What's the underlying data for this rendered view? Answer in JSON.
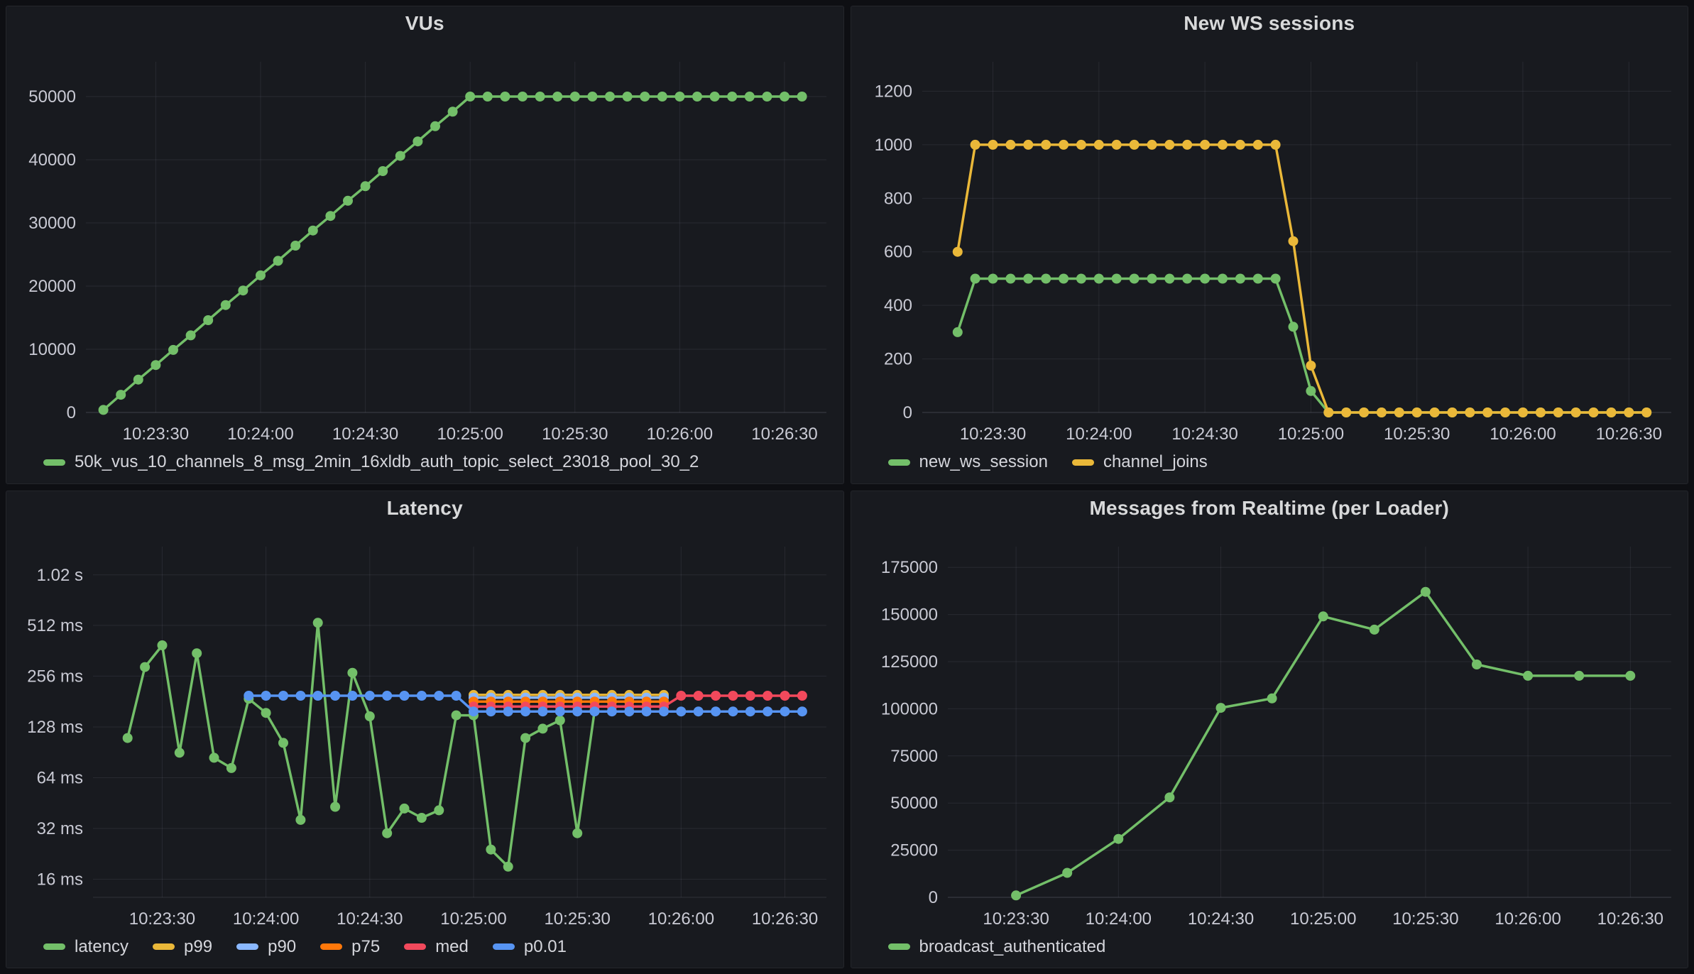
{
  "app": "grafana-dashboard",
  "colors": {
    "page_bg": "#0e0f13",
    "panel_bg": "#181a1f",
    "panel_border": "#24262b",
    "grid": "rgba(204,204,220,0.09)",
    "axis_text": "#c9cad4",
    "title_text": "#d8d9da",
    "legend_text": "#d5d6dc",
    "green": "#73BF69",
    "yellow": "#EAB839",
    "light_blue": "#8AB8FF",
    "orange": "#FF780A",
    "red": "#F2495C",
    "blue": "#5794F2"
  },
  "time_axis_labels": [
    "10:23:30",
    "10:24:00",
    "10:24:30",
    "10:25:00",
    "10:25:30",
    "10:26:00",
    "10:26:30"
  ],
  "panels": [
    {
      "key": "vus",
      "title": "VUs",
      "chart_data": {
        "type": "line",
        "title": "VUs",
        "y_scale": "linear",
        "x_unit": "seconds after 10:23:00",
        "xlim": [
          10,
          222
        ],
        "ylim": [
          0,
          55500
        ],
        "x_ticks": [
          {
            "t": 30,
            "label": "10:23:30"
          },
          {
            "t": 60,
            "label": "10:24:00"
          },
          {
            "t": 90,
            "label": "10:24:30"
          },
          {
            "t": 120,
            "label": "10:25:00"
          },
          {
            "t": 150,
            "label": "10:25:30"
          },
          {
            "t": 180,
            "label": "10:26:00"
          },
          {
            "t": 210,
            "label": "10:26:30"
          }
        ],
        "y_ticks": [
          {
            "v": 0,
            "label": "0"
          },
          {
            "v": 10000,
            "label": "10000"
          },
          {
            "v": 20000,
            "label": "20000"
          },
          {
            "v": 30000,
            "label": "30000"
          },
          {
            "v": 40000,
            "label": "40000"
          },
          {
            "v": 50000,
            "label": "50000"
          }
        ],
        "layout": {
          "ml": 112,
          "mr": 24,
          "mt": 30,
          "mb": 54
        },
        "series": [
          {
            "name": "50k_vus_10_channels_8_msg_2min_16xldb_auth_topic_select_23018_pool_30_2",
            "color": "#73BF69",
            "start": 15,
            "step": 5,
            "values": [
              400,
              2800,
              5200,
              7500,
              9900,
              12200,
              14600,
              17000,
              19300,
              21700,
              24000,
              26400,
              28800,
              31100,
              33500,
              35800,
              38200,
              40600,
              42900,
              45300,
              47600,
              50000,
              50000,
              50000,
              50000,
              50000,
              50000,
              50000,
              50000,
              50000,
              50000,
              50000,
              50000,
              50000,
              50000,
              50000,
              50000,
              50000,
              50000,
              50000,
              50000
            ]
          }
        ]
      }
    },
    {
      "key": "new-ws-sessions",
      "title": "New WS sessions",
      "chart_data": {
        "type": "line",
        "title": "New WS sessions",
        "y_scale": "linear",
        "x_unit": "seconds after 10:23:00",
        "xlim": [
          10,
          222
        ],
        "ylim": [
          0,
          1310
        ],
        "x_ticks": [
          {
            "t": 30,
            "label": "10:23:30"
          },
          {
            "t": 60,
            "label": "10:24:00"
          },
          {
            "t": 90,
            "label": "10:24:30"
          },
          {
            "t": 120,
            "label": "10:25:00"
          },
          {
            "t": 150,
            "label": "10:25:30"
          },
          {
            "t": 180,
            "label": "10:26:00"
          },
          {
            "t": 210,
            "label": "10:26:30"
          }
        ],
        "y_ticks": [
          {
            "v": 0,
            "label": "0"
          },
          {
            "v": 200,
            "label": "200"
          },
          {
            "v": 400,
            "label": "400"
          },
          {
            "v": 600,
            "label": "600"
          },
          {
            "v": 800,
            "label": "800"
          },
          {
            "v": 1000,
            "label": "1000"
          },
          {
            "v": 1200,
            "label": "1200"
          }
        ],
        "layout": {
          "ml": 100,
          "mr": 24,
          "mt": 30,
          "mb": 54
        },
        "series": [
          {
            "name": "new_ws_session",
            "color": "#73BF69",
            "start": 20,
            "step": 5,
            "values": [
              300,
              500,
              500,
              500,
              500,
              500,
              500,
              500,
              500,
              500,
              500,
              500,
              500,
              500,
              500,
              500,
              500,
              500,
              500,
              320,
              80,
              0,
              0,
              0,
              0,
              0,
              0,
              0,
              0,
              0,
              0,
              0,
              0,
              0,
              0,
              0,
              0,
              0,
              0,
              0
            ]
          },
          {
            "name": "channel_joins",
            "color": "#EAB839",
            "start": 20,
            "step": 5,
            "values": [
              600,
              1000,
              1000,
              1000,
              1000,
              1000,
              1000,
              1000,
              1000,
              1000,
              1000,
              1000,
              1000,
              1000,
              1000,
              1000,
              1000,
              1000,
              1000,
              640,
              175,
              0,
              0,
              0,
              0,
              0,
              0,
              0,
              0,
              0,
              0,
              0,
              0,
              0,
              0,
              0,
              0,
              0,
              0,
              0
            ]
          }
        ]
      }
    },
    {
      "key": "latency",
      "title": "Latency",
      "chart_data": {
        "type": "line",
        "title": "Latency",
        "y_scale": "log2",
        "y_unit": "ms",
        "x_unit": "seconds after 10:23:00",
        "xlim": [
          10,
          222
        ],
        "ylim": [
          12.5,
          1500
        ],
        "x_ticks": [
          {
            "t": 30,
            "label": "10:23:30"
          },
          {
            "t": 60,
            "label": "10:24:00"
          },
          {
            "t": 90,
            "label": "10:24:30"
          },
          {
            "t": 120,
            "label": "10:25:00"
          },
          {
            "t": 150,
            "label": "10:25:30"
          },
          {
            "t": 180,
            "label": "10:26:00"
          },
          {
            "t": 210,
            "label": "10:26:30"
          }
        ],
        "y_ticks": [
          {
            "v": 16,
            "label": "16 ms"
          },
          {
            "v": 32,
            "label": "32 ms"
          },
          {
            "v": 64,
            "label": "64 ms"
          },
          {
            "v": 128,
            "label": "128 ms"
          },
          {
            "v": 256,
            "label": "256 ms"
          },
          {
            "v": 512,
            "label": "512 ms"
          },
          {
            "v": 1020,
            "label": "1.02 s"
          }
        ],
        "layout": {
          "ml": 122,
          "mr": 24,
          "mt": 30,
          "mb": 54
        },
        "series": [
          {
            "name": "latency",
            "color": "#73BF69",
            "start": 20,
            "step": 5,
            "values": [
              110,
              290,
              390,
              90,
              350,
              84,
              73,
              188,
              155,
              103,
              36,
              530,
              43,
              268,
              148,
              30,
              42,
              37,
              41,
              150,
              150,
              24,
              19,
              110,
              125,
              140,
              30,
              160
            ]
          },
          {
            "name": "p99",
            "color": "#EAB839",
            "start": 120,
            "step": 5,
            "values": [
              198,
              198,
              198,
              198,
              198,
              198,
              198,
              198,
              198,
              198,
              198,
              198
            ]
          },
          {
            "name": "p90",
            "color": "#8AB8FF",
            "start": 120,
            "step": 5,
            "values": [
              191,
              191,
              191,
              191,
              191,
              191,
              191,
              191,
              191,
              191,
              191,
              191
            ]
          },
          {
            "name": "p75",
            "color": "#FF780A",
            "start": 120,
            "step": 5,
            "values": [
              181,
              181,
              181,
              181,
              181,
              181,
              181,
              181,
              181,
              181,
              181,
              181
            ]
          },
          {
            "name": "med",
            "color": "#F2495C",
            "start": 120,
            "step": 5,
            "values": [
              169,
              169,
              169,
              169,
              169,
              169,
              169,
              169,
              169,
              169,
              169,
              169,
              196,
              196,
              196,
              196,
              196,
              196,
              196,
              196
            ]
          },
          {
            "name": "p0.01",
            "color": "#5794F2",
            "start": 55,
            "step": 5,
            "values": [
              196,
              196,
              196,
              196,
              196,
              196,
              196,
              196,
              196,
              196,
              196,
              196,
              196,
              158,
              158,
              158,
              158,
              158,
              158,
              158,
              158,
              158,
              158,
              158,
              158,
              158,
              158,
              158,
              158,
              158,
              158,
              158,
              158
            ]
          }
        ]
      }
    },
    {
      "key": "messages-from-realtime",
      "title": "Messages from Realtime (per Loader)",
      "chart_data": {
        "type": "line",
        "title": "Messages from Realtime (per Loader)",
        "y_scale": "linear",
        "x_unit": "seconds after 10:23:00",
        "xlim": [
          10,
          222
        ],
        "ylim": [
          0,
          186000
        ],
        "x_ticks": [
          {
            "t": 30,
            "label": "10:23:30"
          },
          {
            "t": 60,
            "label": "10:24:00"
          },
          {
            "t": 90,
            "label": "10:24:30"
          },
          {
            "t": 120,
            "label": "10:25:00"
          },
          {
            "t": 150,
            "label": "10:25:30"
          },
          {
            "t": 180,
            "label": "10:26:00"
          },
          {
            "t": 210,
            "label": "10:26:30"
          }
        ],
        "y_ticks": [
          {
            "v": 0,
            "label": "0"
          },
          {
            "v": 25000,
            "label": "25000"
          },
          {
            "v": 50000,
            "label": "50000"
          },
          {
            "v": 75000,
            "label": "75000"
          },
          {
            "v": 100000,
            "label": "100000"
          },
          {
            "v": 125000,
            "label": "125000"
          },
          {
            "v": 150000,
            "label": "150000"
          },
          {
            "v": 175000,
            "label": "175000"
          }
        ],
        "layout": {
          "ml": 136,
          "mr": 24,
          "mt": 30,
          "mb": 54
        },
        "series": [
          {
            "name": "broadcast_authenticated",
            "color": "#73BF69",
            "start": 30,
            "step": 15,
            "values": [
              1000,
              13000,
              31000,
              53000,
              100500,
              105500,
              149000,
              142000,
              162000,
              123500,
              117500,
              117500,
              117500
            ]
          }
        ]
      }
    }
  ]
}
